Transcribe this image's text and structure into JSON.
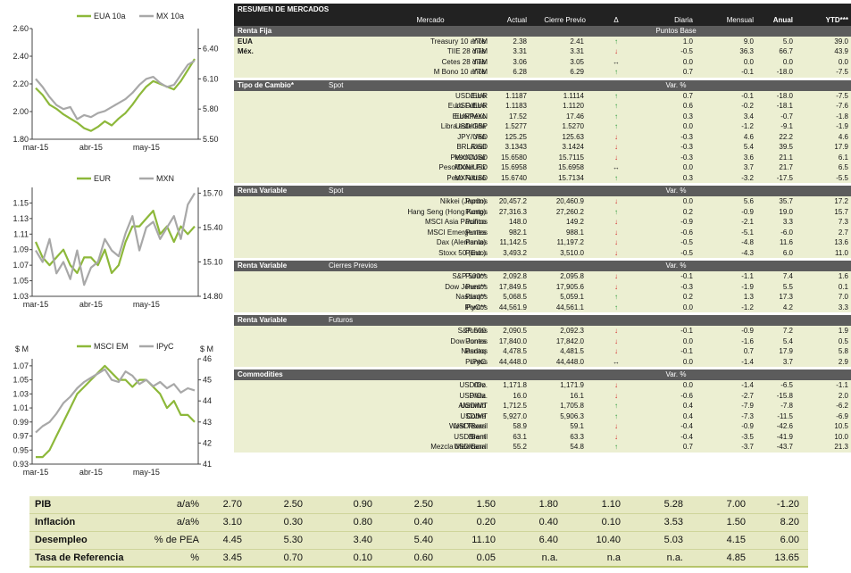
{
  "chart_data": [
    {
      "type": "line",
      "x": [
        "mar-15",
        "",
        "",
        "",
        "",
        "",
        "",
        "",
        "abr-15",
        "",
        "",
        "",
        "",
        "",
        "",
        "",
        "may-15",
        "",
        "",
        "",
        "",
        "",
        "",
        ""
      ],
      "xticks": [
        "mar-15",
        "abr-15",
        "may-15"
      ],
      "series": [
        {
          "name": "EUA 10a",
          "axis": "left",
          "color": "#8db83a",
          "values": [
            2.17,
            2.12,
            2.05,
            2.02,
            1.98,
            1.95,
            1.92,
            1.88,
            1.86,
            1.89,
            1.93,
            1.9,
            1.95,
            1.99,
            2.05,
            2.12,
            2.18,
            2.22,
            2.2,
            2.18,
            2.16,
            2.22,
            2.3,
            2.38
          ]
        },
        {
          "name": "MX 10a",
          "axis": "right",
          "color": "#a8a8a8",
          "values": [
            6.1,
            6.02,
            5.92,
            5.84,
            5.8,
            5.82,
            5.7,
            5.74,
            5.72,
            5.76,
            5.78,
            5.82,
            5.86,
            5.9,
            5.96,
            6.04,
            6.1,
            6.12,
            6.06,
            6.02,
            6.04,
            6.14,
            6.24,
            6.28
          ]
        }
      ],
      "ylim_left": [
        1.8,
        2.6
      ],
      "yticks_left": [
        "2.60",
        "2.40",
        "2.20",
        "2.00",
        "1.80"
      ],
      "ylim_right": [
        5.5,
        6.6
      ],
      "yticks_right": [
        "6.40",
        "6.10",
        "5.80",
        "5.50"
      ]
    },
    {
      "type": "line",
      "x": [
        "mar-15",
        "",
        "",
        "",
        "",
        "",
        "",
        "",
        "abr-15",
        "",
        "",
        "",
        "",
        "",
        "",
        "",
        "may-15",
        "",
        "",
        "",
        "",
        "",
        "",
        ""
      ],
      "xticks": [
        "mar-15",
        "abr-15",
        "may-15"
      ],
      "series": [
        {
          "name": "EUR",
          "axis": "left",
          "color": "#8db83a",
          "values": [
            1.1,
            1.08,
            1.07,
            1.08,
            1.09,
            1.07,
            1.06,
            1.08,
            1.08,
            1.07,
            1.09,
            1.06,
            1.07,
            1.1,
            1.12,
            1.12,
            1.13,
            1.14,
            1.11,
            1.12,
            1.1,
            1.12,
            1.11,
            1.12
          ]
        },
        {
          "name": "MXN",
          "axis": "right",
          "color": "#a8a8a8",
          "values": [
            15.2,
            15.1,
            15.3,
            15.0,
            15.1,
            14.95,
            15.2,
            14.9,
            15.05,
            15.1,
            15.3,
            15.2,
            15.15,
            15.35,
            15.5,
            15.2,
            15.4,
            15.45,
            15.3,
            15.4,
            15.5,
            15.3,
            15.6,
            15.7
          ]
        }
      ],
      "ylim_left": [
        1.03,
        1.17
      ],
      "yticks_left": [
        "1.15",
        "1.13",
        "1.11",
        "1.09",
        "1.07",
        "1.05",
        "1.03"
      ],
      "ylim_right": [
        14.8,
        15.75
      ],
      "yticks_right": [
        "15.70",
        "15.40",
        "15.10",
        "14.80"
      ]
    },
    {
      "type": "line",
      "x": [
        "mar-15",
        "",
        "",
        "",
        "",
        "",
        "",
        "",
        "abr-15",
        "",
        "",
        "",
        "",
        "",
        "",
        "",
        "may-15",
        "",
        "",
        "",
        "",
        "",
        "",
        ""
      ],
      "xticks": [
        "abr-15",
        "may-15"
      ],
      "series": [
        {
          "name": "MSCI EM",
          "axis": "left",
          "color": "#8db83a",
          "values": [
            0.94,
            0.94,
            0.95,
            0.97,
            0.99,
            1.01,
            1.03,
            1.04,
            1.05,
            1.06,
            1.07,
            1.06,
            1.05,
            1.05,
            1.04,
            1.05,
            1.05,
            1.04,
            1.03,
            1.01,
            1.02,
            1.0,
            1.0,
            0.99
          ]
        },
        {
          "name": "IPyC",
          "axis": "right",
          "color": "#a8a8a8",
          "values": [
            42.5,
            42.8,
            43.0,
            43.4,
            43.9,
            44.2,
            44.6,
            44.9,
            45.1,
            45.3,
            45.5,
            45.0,
            44.9,
            45.4,
            45.2,
            44.8,
            45.0,
            44.7,
            44.9,
            44.6,
            44.8,
            44.4,
            44.6,
            44.5
          ]
        }
      ],
      "ylim_left": [
        0.93,
        1.08
      ],
      "yticks_left": [
        "1.07",
        "1.05",
        "1.03",
        "1.01",
        "0.99",
        "0.97",
        "0.95",
        "0.93"
      ],
      "ylim_right": [
        41,
        46
      ],
      "yticks_right": [
        "46",
        "45",
        "44",
        "43",
        "42",
        "41"
      ],
      "unit_left": "$ M",
      "unit_right": "$ M"
    }
  ],
  "table": {
    "title": "RESUMEN DE MERCADOS",
    "headers": {
      "mercado": "Mercado",
      "actual": "Actual",
      "cierre": "Cierre Previo",
      "delta": "Δ",
      "diaria": "Diaria",
      "mensual": "Mensual",
      "anual": "Anual",
      "ytd": "YTD***"
    },
    "sections": [
      {
        "title": "Renta Fija",
        "sub": "",
        "note": "Puntos Base",
        "rows": [
          {
            "g": "EUA",
            "n": "Treasury 10 años",
            "u": "YTM",
            "a": "2.38",
            "p": "2.41",
            "ar": "up",
            "d": "1.0",
            "m": "9.0",
            "y": "5.0",
            "t": "39.0"
          },
          {
            "g": "Méx.",
            "n": "TIIE 28 días",
            "u": "YTM",
            "a": "3.31",
            "p": "3.31",
            "ar": "down",
            "d": "-0.5",
            "m": "36.3",
            "y": "66.7",
            "t": "43.9"
          },
          {
            "g": "",
            "n": "Cetes 28 días",
            "u": "YTM",
            "a": "3.06",
            "p": "3.05",
            "ar": "flat",
            "d": "0.0",
            "m": "0.0",
            "y": "0.0",
            "t": "0.0"
          },
          {
            "g": "",
            "n": "M Bono 10 años",
            "u": "YTM",
            "a": "6.28",
            "p": "6.29",
            "ar": "up",
            "d": "0.7",
            "m": "-0.1",
            "y": "-18.0",
            "t": "-7.5"
          }
        ]
      },
      {
        "title": "Tipo de Cambio*",
        "sub": "Spot",
        "note": "Var. %",
        "rows": [
          {
            "g": "",
            "n": "Euro",
            "u": "USD/EUR",
            "a": "1.1187",
            "p": "1.1114",
            "ar": "up",
            "d": "0.7",
            "m": "-0.1",
            "y": "-18.0",
            "t": "-7.5"
          },
          {
            "g": "",
            "n": "Euro Futuro",
            "u": "USD/EUR",
            "a": "1.1183",
            "p": "1.1120",
            "ar": "up",
            "d": "0.6",
            "m": "-0.2",
            "y": "-18.1",
            "t": "-7.6"
          },
          {
            "g": "",
            "n": "Euro/Peso",
            "u": "EUR/MXN",
            "a": "17.52",
            "p": "17.46",
            "ar": "up",
            "d": "0.3",
            "m": "3.4",
            "y": "-0.7",
            "t": "-1.8"
          },
          {
            "g": "",
            "n": "Libra esterlina",
            "u": "USD/GBP",
            "a": "1.5277",
            "p": "1.5270",
            "ar": "up",
            "d": "0.0",
            "m": "-1.2",
            "y": "-9.1",
            "t": "-1.9"
          },
          {
            "g": "",
            "n": "Yen",
            "u": "JPY/USD",
            "a": "125.25",
            "p": "125.63",
            "ar": "down",
            "d": "-0.3",
            "m": "4.6",
            "y": "22.2",
            "t": "4.6"
          },
          {
            "g": "",
            "n": "Real",
            "u": "BRL/USD",
            "a": "3.1343",
            "p": "3.1424",
            "ar": "down",
            "d": "-0.3",
            "m": "5.4",
            "y": "39.5",
            "t": "17.9"
          },
          {
            "g": "",
            "n": "Peso/Dólar",
            "u": "MXN/USD",
            "a": "15.6580",
            "p": "15.7115",
            "ar": "down",
            "d": "-0.3",
            "m": "3.6",
            "y": "21.1",
            "t": "6.1"
          },
          {
            "g": "",
            "n": "Peso/Dólar Fix",
            "u": "MXN/USD",
            "a": "15.6958",
            "p": "15.6958",
            "ar": "flat",
            "d": "0.0",
            "m": "3.7",
            "y": "21.7",
            "t": "6.5"
          },
          {
            "g": "",
            "n": "Peso Futuro",
            "u": "MXN/USD",
            "a": "15.6740",
            "p": "15.7134",
            "ar": "up",
            "d": "0.3",
            "m": "-3.2",
            "y": "-17.5",
            "t": "-5.5"
          }
        ]
      },
      {
        "title": "Renta Variable",
        "sub": "Spot",
        "note": "Var. %",
        "rows": [
          {
            "g": "",
            "n": "Nikkei (Japón)",
            "u": "Puntos",
            "a": "20,457.2",
            "p": "20,460.9",
            "ar": "down",
            "d": "0.0",
            "m": "5.6",
            "y": "35.7",
            "t": "17.2"
          },
          {
            "g": "",
            "n": "Hang Seng (Hong Kong)",
            "u": "Puntos",
            "a": "27,316.3",
            "p": "27,260.2",
            "ar": "up",
            "d": "0.2",
            "m": "-0.9",
            "y": "19.0",
            "t": "15.7"
          },
          {
            "g": "",
            "n": "MSCI Asia Pacífico",
            "u": "Puntos",
            "a": "148.0",
            "p": "149.2",
            "ar": "down",
            "d": "-0.9",
            "m": "-2.1",
            "y": "3.3",
            "t": "7.3"
          },
          {
            "g": "",
            "n": "MSCI Emergentes",
            "u": "Puntos",
            "a": "982.1",
            "p": "988.1",
            "ar": "down",
            "d": "-0.6",
            "m": "-5.1",
            "y": "-6.0",
            "t": "2.7"
          },
          {
            "g": "",
            "n": "Dax (Alemania)",
            "u": "Puntos",
            "a": "11,142.5",
            "p": "11,197.2",
            "ar": "down",
            "d": "-0.5",
            "m": "-4.8",
            "y": "11.6",
            "t": "13.6"
          },
          {
            "g": "",
            "n": "Stoxx 50 (Eur.)",
            "u": "Puntos",
            "a": "3,493.2",
            "p": "3,510.0",
            "ar": "down",
            "d": "-0.5",
            "m": "-4.3",
            "y": "6.0",
            "t": "11.0"
          }
        ]
      },
      {
        "title": "Renta Variable",
        "sub": "Cierres Previos",
        "note": "Var. %",
        "rows": [
          {
            "g": "",
            "n": "S&P 500**",
            "u": "Puntos",
            "a": "2,092.8",
            "p": "2,095.8",
            "ar": "down",
            "d": "-0.1",
            "m": "-1.1",
            "y": "7.4",
            "t": "1.6"
          },
          {
            "g": "",
            "n": "Dow Jones**",
            "u": "Puntos",
            "a": "17,849.5",
            "p": "17,905.6",
            "ar": "down",
            "d": "-0.3",
            "m": "-1.9",
            "y": "5.5",
            "t": "0.1"
          },
          {
            "g": "",
            "n": "Nasdaq**",
            "u": "Puntos",
            "a": "5,068.5",
            "p": "5,059.1",
            "ar": "up",
            "d": "0.2",
            "m": "1.3",
            "y": "17.3",
            "t": "7.0"
          },
          {
            "g": "",
            "n": "IPyC**",
            "u": "Puntos",
            "a": "44,561.9",
            "p": "44,561.1",
            "ar": "up",
            "d": "0.0",
            "m": "-1.2",
            "y": "4.2",
            "t": "3.3"
          }
        ]
      },
      {
        "title": "Renta Variable",
        "sub": "Futuros",
        "note": "",
        "rows": [
          {
            "g": "",
            "n": "S&P 500",
            "u": "Puntos",
            "a": "2,090.5",
            "p": "2,092.3",
            "ar": "down",
            "d": "-0.1",
            "m": "-0.9",
            "y": "7.2",
            "t": "1.9"
          },
          {
            "g": "",
            "n": "Dow Jones",
            "u": "Puntos",
            "a": "17,840.0",
            "p": "17,842.0",
            "ar": "down",
            "d": "0.0",
            "m": "-1.6",
            "y": "5.4",
            "t": "0.5"
          },
          {
            "g": "",
            "n": "Nasdaq",
            "u": "Puntos",
            "a": "4,478.5",
            "p": "4,481.5",
            "ar": "down",
            "d": "-0.1",
            "m": "0.7",
            "y": "17.9",
            "t": "5.8"
          },
          {
            "g": "",
            "n": "IPyC",
            "u": "Puntos",
            "a": "44,448.0",
            "p": "44,448.0",
            "ar": "flat",
            "d": "0.0",
            "m": "-1.4",
            "y": "3.7",
            "t": "2.9"
          }
        ]
      },
      {
        "title": "Commodities",
        "sub": "",
        "note": "Var. %",
        "rows": [
          {
            "g": "",
            "n": "Oro",
            "u": "USD/Oz.",
            "a": "1,171.8",
            "p": "1,171.9",
            "ar": "down",
            "d": "0.0",
            "m": "-1.4",
            "y": "-6.5",
            "t": "-1.1"
          },
          {
            "g": "",
            "n": "Plata",
            "u": "USD/Oz.",
            "a": "16.0",
            "p": "16.1",
            "ar": "down",
            "d": "-0.6",
            "m": "-2.7",
            "y": "-15.8",
            "t": "2.0"
          },
          {
            "g": "",
            "n": "Aluminio",
            "u": "USD/MT",
            "a": "1,712.5",
            "p": "1,705.8",
            "ar": "up",
            "d": "0.4",
            "m": "-7.9",
            "y": "-7.8",
            "t": "-6.2"
          },
          {
            "g": "",
            "n": "Cobre",
            "u": "USD/MT",
            "a": "5,927.0",
            "p": "5,906.3",
            "ar": "up",
            "d": "0.4",
            "m": "-7.3",
            "y": "-11.5",
            "t": "-6.9"
          },
          {
            "g": "",
            "n": "West Texas",
            "u": "USD/Barril",
            "a": "58.9",
            "p": "59.1",
            "ar": "down",
            "d": "-0.4",
            "m": "-0.9",
            "y": "-42.6",
            "t": "10.5"
          },
          {
            "g": "",
            "n": "Brent",
            "u": "USD/Barril",
            "a": "63.1",
            "p": "63.3",
            "ar": "down",
            "d": "-0.4",
            "m": "-3.5",
            "y": "-41.9",
            "t": "10.0"
          },
          {
            "g": "",
            "n": "Mezcla Mexicana",
            "u": "USD/Barril",
            "a": "55.2",
            "p": "54.8",
            "ar": "up",
            "d": "0.7",
            "m": "-3.7",
            "y": "-43.7",
            "t": "21.3"
          }
        ]
      }
    ]
  },
  "macro": {
    "rows": [
      {
        "label": "PIB",
        "unit": "a/a%",
        "vals": [
          "2.70",
          "2.50",
          "0.90",
          "2.50",
          "1.50",
          "1.80",
          "1.10",
          "5.28",
          "7.00",
          "-1.20"
        ]
      },
      {
        "label": "Inflación",
        "unit": "a/a%",
        "vals": [
          "3.10",
          "0.30",
          "0.80",
          "0.40",
          "0.20",
          "0.40",
          "0.10",
          "3.53",
          "1.50",
          "8.20"
        ]
      },
      {
        "label": "Desempleo",
        "unit": "% de PEA",
        "vals": [
          "4.45",
          "5.30",
          "3.40",
          "5.40",
          "11.10",
          "6.40",
          "10.40",
          "5.03",
          "4.15",
          "6.00"
        ]
      },
      {
        "label": "Tasa de Referencia",
        "unit": "%",
        "vals": [
          "3.45",
          "0.70",
          "0.10",
          "0.60",
          "0.05",
          "n.a.",
          "n.a",
          "n.a.",
          "4.85",
          "13.65"
        ]
      }
    ]
  },
  "colors": {
    "up": "#2b9a3b",
    "down": "#d42a2a",
    "header_bg": "#222222",
    "section_bg": "#5c5c5c",
    "row_bg": "#ecefd2",
    "macro_bg": "#e6e9c3",
    "green_series": "#8db83a",
    "gray_series": "#a8a8a8"
  },
  "icons": {
    "up": "arrow-up-icon",
    "down": "arrow-down-icon",
    "flat": "arrow-left-right-icon"
  }
}
